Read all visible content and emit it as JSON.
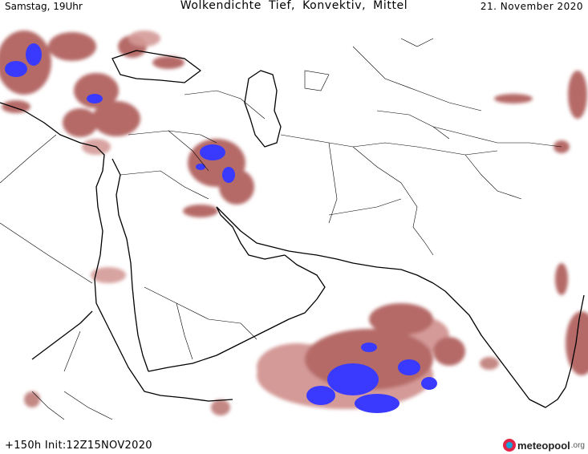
{
  "header": {
    "left": "Samstag, 19Uhr",
    "title": "Wolkendichte  Tief, Konvektiv, Mittel",
    "right": "21. November 2020"
  },
  "footer": {
    "left": "+150h  Init:12Z15NOV2020",
    "logo_text": "meteopool",
    "logo_tld": ".org"
  },
  "colors": {
    "cloud_light": "#d49a97",
    "cloud_medium": "#b56a67",
    "cloud_dark": "#8c3a3a",
    "convective": "#3a3aff",
    "borders": "#000000"
  }
}
